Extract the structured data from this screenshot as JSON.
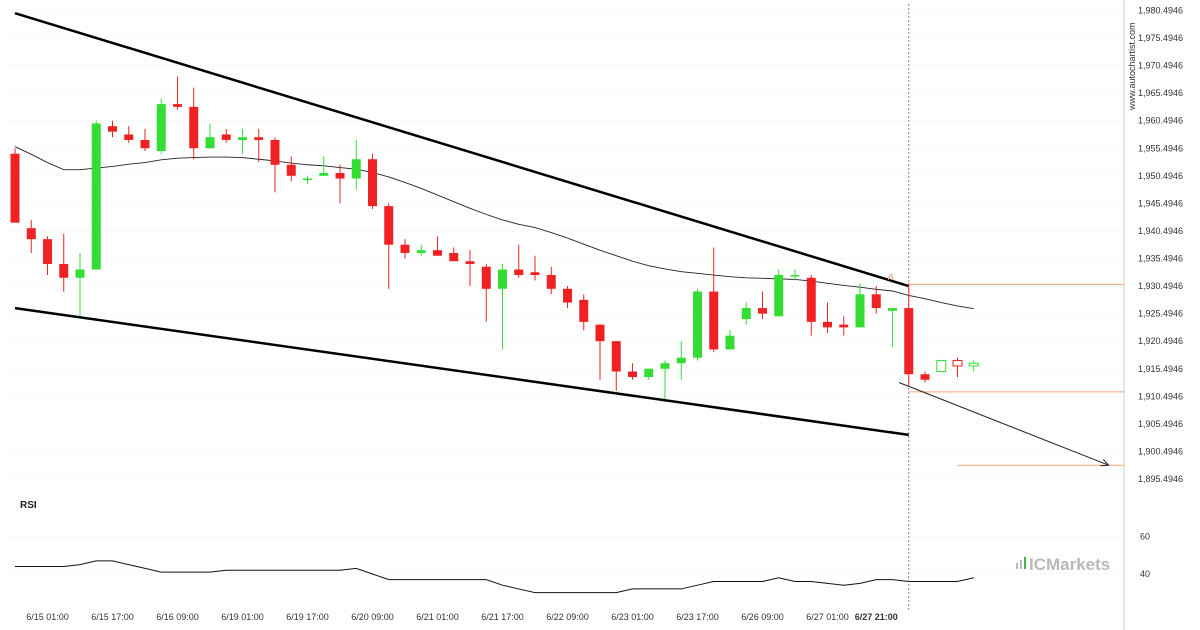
{
  "chart_data": {
    "type": "candlestick",
    "y_ticks": [
      "1,980.4946",
      "1,975.4946",
      "1,970.4946",
      "1,965.4946",
      "1,960.4946",
      "1,955.4946",
      "1,950.4946",
      "1,945.4946",
      "1,940.4946",
      "1,935.4946",
      "1,930.4946",
      "1,925.4946",
      "1,920.4946",
      "1,915.4946",
      "1,910.4946",
      "1,905.4946",
      "1,900.4946",
      "1,895.4946"
    ],
    "y_tick_values": [
      1980.4946,
      1975.4946,
      1970.4946,
      1965.4946,
      1960.4946,
      1955.4946,
      1950.4946,
      1945.4946,
      1940.4946,
      1935.4946,
      1930.4946,
      1925.4946,
      1920.4946,
      1915.4946,
      1910.4946,
      1905.4946,
      1900.4946,
      1895.4946
    ],
    "ylim": [
      1893.5,
      1981.3
    ],
    "x_ticks": [
      "6/15 01:00",
      "6/15 17:00",
      "6/16 09:00",
      "6/19 01:00",
      "6/19 17:00",
      "6/20 09:00",
      "6/21 01:00",
      "6/21 17:00",
      "6/22 09:00",
      "6/23 01:00",
      "6/23 17:00",
      "6/26 09:00",
      "6/27 01:00",
      "6/27 21:00"
    ],
    "x_tick_index": [
      2,
      6,
      10,
      14,
      18,
      22,
      26,
      30,
      34,
      38,
      42,
      46,
      50,
      53
    ],
    "x_tick_bold_index": 13,
    "candles": [
      {
        "o": 1954.5,
        "h": 1955.5,
        "l": 1942.0,
        "c": 1942.0
      },
      {
        "o": 1941.0,
        "h": 1942.5,
        "l": 1936.5,
        "c": 1939.0
      },
      {
        "o": 1939.0,
        "h": 1939.5,
        "l": 1932.5,
        "c": 1934.5
      },
      {
        "o": 1934.5,
        "h": 1940.0,
        "l": 1929.5,
        "c": 1932.0
      },
      {
        "o": 1932.0,
        "h": 1936.5,
        "l": 1925.0,
        "c": 1933.5
      },
      {
        "o": 1933.5,
        "h": 1960.5,
        "l": 1933.5,
        "c": 1960.0
      },
      {
        "o": 1959.5,
        "h": 1960.5,
        "l": 1957.5,
        "c": 1958.5
      },
      {
        "o": 1958.0,
        "h": 1959.5,
        "l": 1956.5,
        "c": 1957.0
      },
      {
        "o": 1957.0,
        "h": 1959.0,
        "l": 1955.0,
        "c": 1955.5
      },
      {
        "o": 1955.0,
        "h": 1964.5,
        "l": 1954.5,
        "c": 1963.5
      },
      {
        "o": 1963.5,
        "h": 1968.5,
        "l": 1962.5,
        "c": 1963.0
      },
      {
        "o": 1963.0,
        "h": 1966.5,
        "l": 1953.5,
        "c": 1955.5
      },
      {
        "o": 1955.5,
        "h": 1960.0,
        "l": 1955.5,
        "c": 1957.5
      },
      {
        "o": 1958.0,
        "h": 1959.0,
        "l": 1956.5,
        "c": 1957.0
      },
      {
        "o": 1957.0,
        "h": 1959.0,
        "l": 1954.5,
        "c": 1957.5
      },
      {
        "o": 1957.5,
        "h": 1959.0,
        "l": 1953.0,
        "c": 1957.0
      },
      {
        "o": 1957.0,
        "h": 1957.5,
        "l": 1947.5,
        "c": 1952.5
      },
      {
        "o": 1952.5,
        "h": 1954.0,
        "l": 1949.5,
        "c": 1950.5
      },
      {
        "o": 1950.0,
        "h": 1950.5,
        "l": 1949.0,
        "c": 1950.0
      },
      {
        "o": 1950.5,
        "h": 1954.0,
        "l": 1950.5,
        "c": 1951.0
      },
      {
        "o": 1951.0,
        "h": 1952.5,
        "l": 1945.5,
        "c": 1950.0
      },
      {
        "o": 1950.0,
        "h": 1957.0,
        "l": 1948.0,
        "c": 1953.5
      },
      {
        "o": 1953.5,
        "h": 1954.5,
        "l": 1944.5,
        "c": 1945.0
      },
      {
        "o": 1945.0,
        "h": 1945.5,
        "l": 1930.0,
        "c": 1938.0
      },
      {
        "o": 1938.0,
        "h": 1939.0,
        "l": 1935.5,
        "c": 1936.5
      },
      {
        "o": 1936.5,
        "h": 1938.0,
        "l": 1936.0,
        "c": 1937.0
      },
      {
        "o": 1937.0,
        "h": 1939.5,
        "l": 1936.0,
        "c": 1936.0
      },
      {
        "o": 1936.5,
        "h": 1937.5,
        "l": 1935.0,
        "c": 1935.0
      },
      {
        "o": 1935.0,
        "h": 1937.0,
        "l": 1930.5,
        "c": 1934.5
      },
      {
        "o": 1934.0,
        "h": 1934.5,
        "l": 1924.0,
        "c": 1930.0
      },
      {
        "o": 1930.0,
        "h": 1934.5,
        "l": 1919.0,
        "c": 1933.5
      },
      {
        "o": 1933.5,
        "h": 1938.0,
        "l": 1932.0,
        "c": 1932.5
      },
      {
        "o": 1933.0,
        "h": 1936.0,
        "l": 1931.5,
        "c": 1932.5
      },
      {
        "o": 1932.5,
        "h": 1934.0,
        "l": 1929.0,
        "c": 1930.0
      },
      {
        "o": 1930.0,
        "h": 1930.5,
        "l": 1926.5,
        "c": 1927.5
      },
      {
        "o": 1928.0,
        "h": 1929.0,
        "l": 1922.5,
        "c": 1924.0
      },
      {
        "o": 1923.5,
        "h": 1923.5,
        "l": 1913.5,
        "c": 1920.5
      },
      {
        "o": 1920.5,
        "h": 1920.5,
        "l": 1911.5,
        "c": 1915.0
      },
      {
        "o": 1915.0,
        "h": 1916.5,
        "l": 1913.5,
        "c": 1914.0
      },
      {
        "o": 1914.0,
        "h": 1915.5,
        "l": 1913.5,
        "c": 1915.5
      },
      {
        "o": 1915.5,
        "h": 1917.0,
        "l": 1910.0,
        "c": 1916.5
      },
      {
        "o": 1916.5,
        "h": 1920.5,
        "l": 1913.5,
        "c": 1917.5
      },
      {
        "o": 1917.5,
        "h": 1930.0,
        "l": 1917.0,
        "c": 1929.5
      },
      {
        "o": 1929.5,
        "h": 1937.5,
        "l": 1918.5,
        "c": 1919.0
      },
      {
        "o": 1919.0,
        "h": 1922.5,
        "l": 1919.0,
        "c": 1921.5
      },
      {
        "o": 1924.5,
        "h": 1927.5,
        "l": 1923.5,
        "c": 1926.5
      },
      {
        "o": 1926.5,
        "h": 1929.5,
        "l": 1924.5,
        "c": 1925.5
      },
      {
        "o": 1925.0,
        "h": 1933.5,
        "l": 1925.0,
        "c": 1932.5
      },
      {
        "o": 1932.5,
        "h": 1933.5,
        "l": 1931.5,
        "c": 1932.5
      },
      {
        "o": 1932.0,
        "h": 1932.5,
        "l": 1921.5,
        "c": 1924.0
      },
      {
        "o": 1924.0,
        "h": 1927.5,
        "l": 1922.0,
        "c": 1923.0
      },
      {
        "o": 1923.5,
        "h": 1925.0,
        "l": 1921.5,
        "c": 1923.0
      },
      {
        "o": 1923.0,
        "h": 1931.0,
        "l": 1923.0,
        "c": 1929.0
      },
      {
        "o": 1929.0,
        "h": 1930.5,
        "l": 1925.5,
        "c": 1926.5
      },
      {
        "o": 1926.0,
        "h": 1926.5,
        "l": 1919.5,
        "c": 1926.5
      },
      {
        "o": 1926.5,
        "h": 1931.0,
        "l": 1912.5,
        "c": 1914.5
      },
      {
        "o": 1914.5,
        "h": 1915.0,
        "l": 1913.0,
        "c": 1913.5
      },
      {
        "o": 1915.0,
        "h": 1917.0,
        "l": 1915.0,
        "c": 1917.0
      },
      {
        "o": 1917.0,
        "h": 1917.5,
        "l": 1914.0,
        "c": 1916.0
      },
      {
        "o": 1916.0,
        "h": 1917.0,
        "l": 1915.0,
        "c": 1916.5
      }
    ],
    "moving_average": [
      1955.8,
      1954.4,
      1952.9,
      1951.6,
      1951.6,
      1951.9,
      1952.2,
      1952.6,
      1952.9,
      1953.4,
      1953.7,
      1953.8,
      1953.9,
      1953.9,
      1953.8,
      1953.5,
      1953.2,
      1952.8,
      1952.5,
      1952.3,
      1952.0,
      1951.7,
      1951.1,
      1950.3,
      1949.3,
      1948.2,
      1947.0,
      1945.8,
      1944.6,
      1943.5,
      1942.5,
      1941.7,
      1941.1,
      1940.2,
      1939.2,
      1938.1,
      1937.0,
      1936.0,
      1935.0,
      1934.2,
      1933.6,
      1933.1,
      1932.8,
      1932.5,
      1932.2,
      1932.0,
      1931.9,
      1931.8,
      1931.7,
      1931.4,
      1931.0,
      1930.6,
      1930.3,
      1929.9,
      1929.6,
      1928.8,
      1928.2,
      1927.5,
      1926.9,
      1926.4
    ],
    "resistance_line": {
      "from": {
        "i": 0,
        "v": 1980.0
      },
      "to": {
        "i": 55,
        "v": 1930.5
      }
    },
    "support_line": {
      "from": {
        "i": 0,
        "v": 1926.5
      },
      "to": {
        "i": 55,
        "v": 1903.5
      }
    },
    "forecast_arrow": {
      "from": {
        "i": 54.4,
        "v": 1913.0
      },
      "to": {
        "i": 67.3,
        "v": 1898.0
      }
    },
    "levels": [
      {
        "value": 1930.8,
        "from_index": 55
      },
      {
        "value": 1911.3,
        "from_index": 55
      },
      {
        "value": 1898.0,
        "from_index": 58
      }
    ],
    "marker_label": "A",
    "marker_value": 1931.6,
    "vertical_line_index": 55,
    "rsi": {
      "title": "RSI",
      "ticks": [
        "60",
        "40"
      ],
      "tick_values": [
        60,
        40
      ],
      "ylim": [
        25,
        70
      ],
      "values": [
        44,
        44,
        44,
        44,
        45,
        47,
        47,
        45,
        43,
        41,
        41,
        41,
        41,
        42,
        42,
        42,
        42,
        42,
        42,
        42,
        42,
        43,
        40,
        37,
        37,
        37,
        37,
        37,
        37,
        37,
        34,
        32,
        30,
        30,
        30,
        30,
        30,
        30,
        32,
        32,
        32,
        32,
        34,
        36,
        36,
        36,
        36,
        38,
        36,
        36,
        35,
        34,
        35,
        37,
        37,
        36,
        36,
        36,
        36,
        38
      ]
    }
  },
  "side_text": "www.autochartist.com",
  "brand": {
    "left": "IC",
    "right": "Markets"
  },
  "colors": {
    "bull": "#33dd33",
    "bear": "#ee2222",
    "trend": "#000000",
    "level": "#f0a070",
    "grid": "#dddddd",
    "text": "#333333",
    "brand": "#b9b9b9",
    "brand_accent": "#4caf50"
  }
}
